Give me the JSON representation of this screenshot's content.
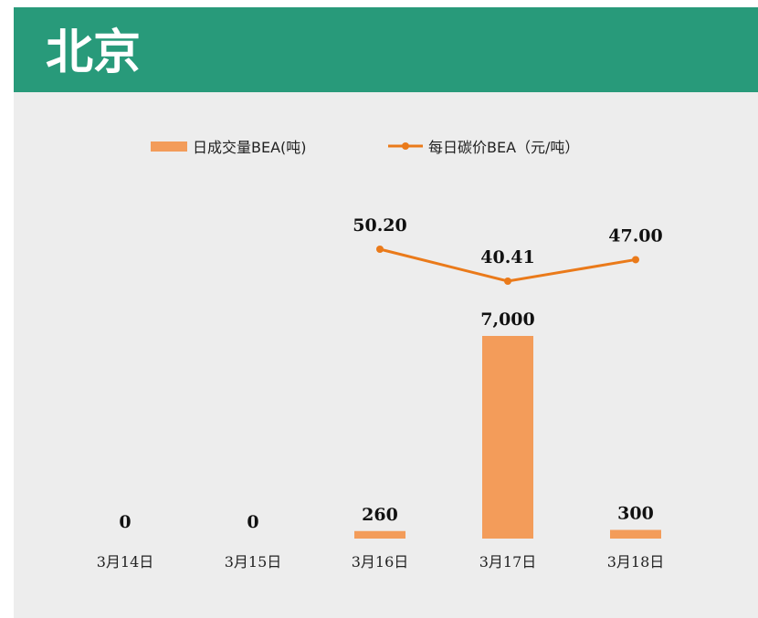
{
  "header": {
    "title": "北京"
  },
  "legend": {
    "bar_label": "日成交量BEA(吨)",
    "line_label": "每日碳价BEA（元/吨）"
  },
  "colors": {
    "header_bg": "#289a7a",
    "bar": "#f39c5a",
    "line": "#ea7a1a",
    "plot_bg": "#ededed"
  },
  "chart_data": {
    "type": "bar",
    "categories": [
      "3月14日",
      "3月15日",
      "3月16日",
      "3月17日",
      "3月18日"
    ],
    "series": [
      {
        "name": "日成交量BEA(吨)",
        "type": "bar",
        "values": [
          0,
          0,
          260,
          7000,
          300
        ],
        "labels": [
          "0",
          "0",
          "260",
          "7,000",
          "300"
        ]
      },
      {
        "name": "每日碳价BEA（元/吨）",
        "type": "line",
        "values": [
          null,
          null,
          50.2,
          40.41,
          47.0
        ],
        "labels": [
          "",
          "",
          "50.20",
          "40.41",
          "47.00"
        ]
      }
    ],
    "title": "北京",
    "xlabel": "",
    "ylabel": "",
    "grid": false,
    "legend_position": "top"
  }
}
